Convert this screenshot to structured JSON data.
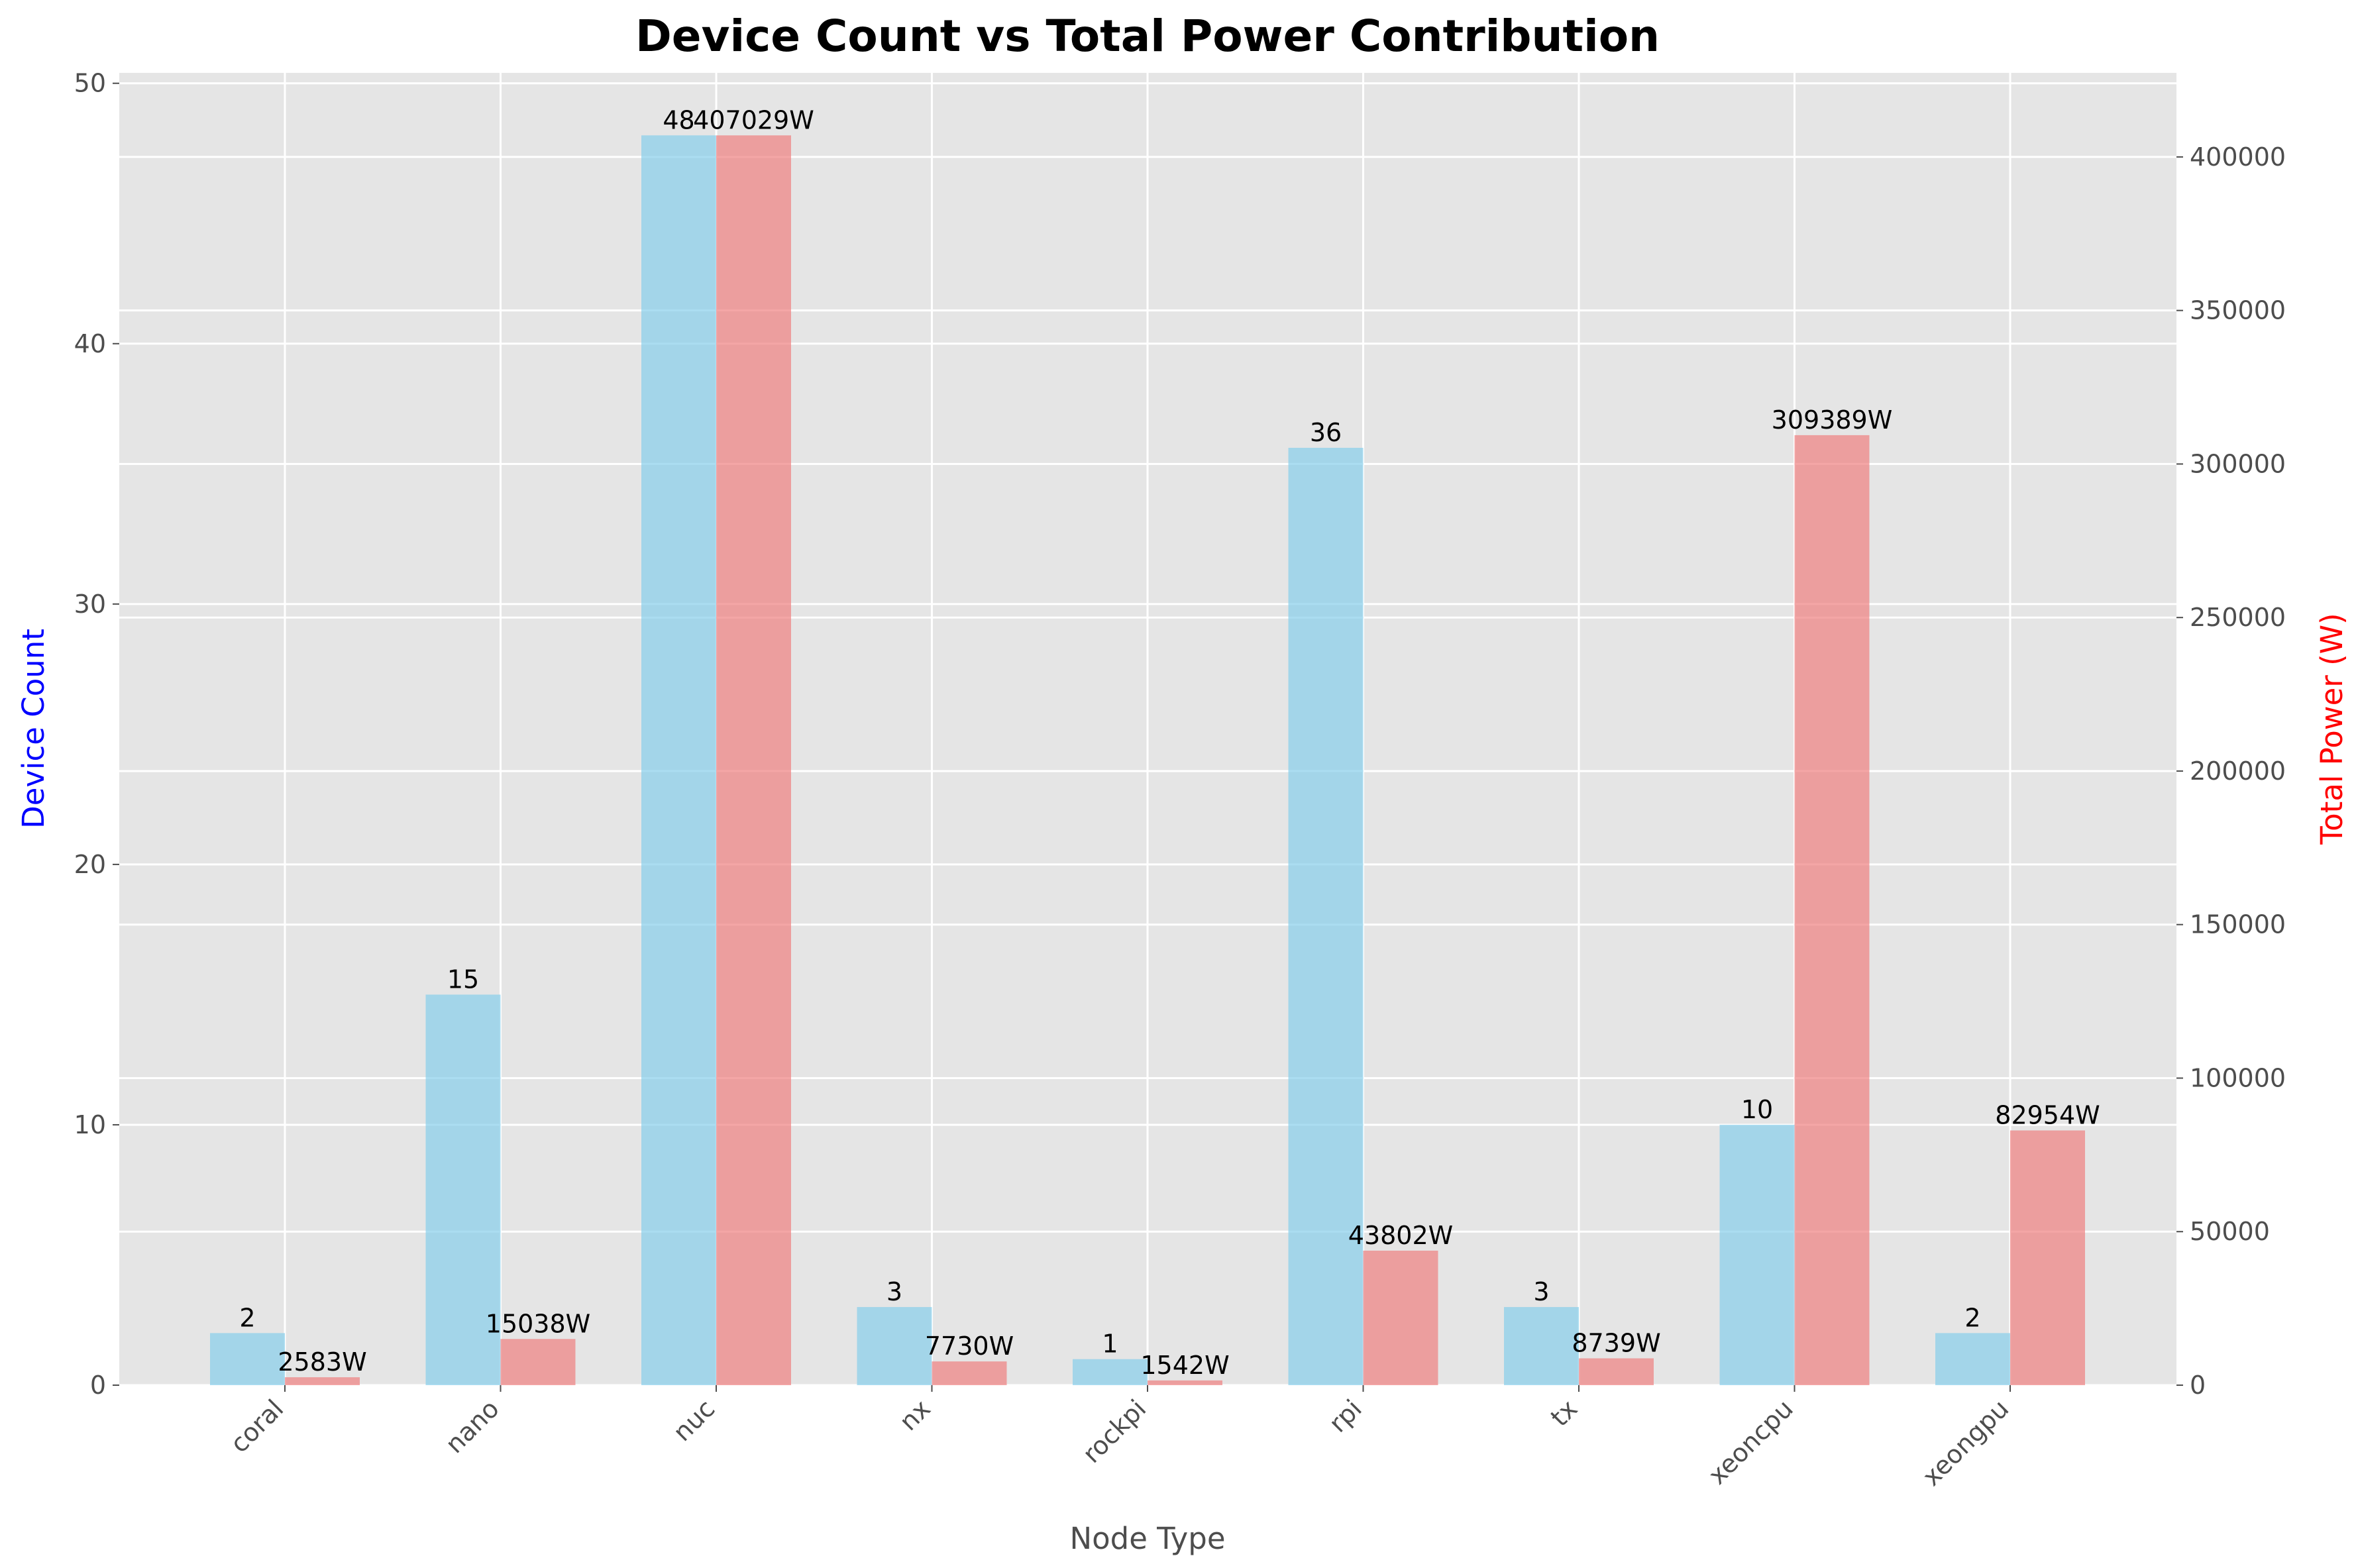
{
  "chart_data": {
    "type": "bar",
    "title": "Device Count vs Total Power Contribution",
    "xlabel": "Node Type",
    "ylabel": "Device Count",
    "y2label": "Total Power (W)",
    "categories": [
      "coral",
      "nano",
      "nuc",
      "nx",
      "rockpi",
      "rpi",
      "tx",
      "xeoncpu",
      "xeongpu"
    ],
    "series": [
      {
        "axis": "left",
        "color": "#87CEEB",
        "values": [
          2,
          15,
          48,
          3,
          1,
          36,
          3,
          10,
          2
        ],
        "labels": [
          "2",
          "15",
          "48",
          "3",
          "1",
          "36",
          "3",
          "10",
          "2"
        ]
      },
      {
        "axis": "right",
        "color": "#F08080",
        "values": [
          2583,
          15038,
          407029,
          7730,
          1542,
          43802,
          8739,
          309389,
          82954
        ],
        "labels": [
          "2583W",
          "15038W",
          "407029W",
          "7730W",
          "1542W",
          "43802W",
          "8739W",
          "309389W",
          "82954W"
        ]
      }
    ],
    "ylim": [
      0,
      50.4
    ],
    "y2lim": [
      0,
      427380
    ],
    "yticks": [
      "0",
      "10",
      "20",
      "30",
      "40",
      "50"
    ],
    "y2ticks": [
      "0",
      "50000",
      "100000",
      "150000",
      "200000",
      "250000",
      "300000",
      "350000",
      "400000"
    ],
    "colors": {
      "ylabel": "#0000FF",
      "y2label": "#FF0000",
      "background": "#E5E5E5",
      "grid": "#FFFFFF"
    },
    "grid": true,
    "legend": "none"
  }
}
